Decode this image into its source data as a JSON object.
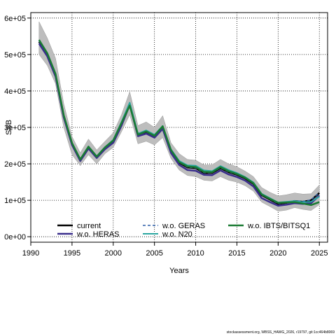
{
  "chart_data": {
    "type": "line",
    "title": "",
    "xlabel": "Years",
    "ylabel": "SSB",
    "xlim": [
      1990,
      2026
    ],
    "ylim": [
      -15000,
      615000
    ],
    "x_ticks": [
      1990,
      1995,
      2000,
      2005,
      2010,
      2015,
      2020,
      2025
    ],
    "x_tick_labels": [
      "1990",
      "1995",
      "2000",
      "2005",
      "2010",
      "2015",
      "2020",
      "2025"
    ],
    "y_ticks": [
      0,
      100000,
      200000,
      300000,
      400000,
      500000,
      600000
    ],
    "y_tick_labels": [
      "0e+00",
      "1e+05",
      "2e+05",
      "3e+05",
      "4e+05",
      "5e+05",
      "6e+05"
    ],
    "grid": true,
    "legend_position": "bottom",
    "years": [
      1991,
      1992,
      1993,
      1994,
      1995,
      1996,
      1997,
      1998,
      1999,
      2000,
      2001,
      2002,
      2003,
      2004,
      2005,
      2006,
      2007,
      2008,
      2009,
      2010,
      2011,
      2012,
      2013,
      2014,
      2015,
      2016,
      2017,
      2018,
      2019,
      2020,
      2021,
      2022,
      2023,
      2024,
      2025
    ],
    "band": {
      "upper": [
        590000,
        545000,
        490000,
        365000,
        275000,
        230000,
        268000,
        238000,
        262000,
        285000,
        335000,
        398000,
        305000,
        315000,
        300000,
        332000,
        258000,
        228000,
        212000,
        210000,
        197000,
        197000,
        212000,
        200000,
        192000,
        180000,
        165000,
        135000,
        122000,
        112000,
        115000,
        120000,
        117000,
        118000,
        142000
      ],
      "lower": [
        500000,
        470000,
        420000,
        300000,
        225000,
        195000,
        225000,
        200000,
        228000,
        245000,
        288000,
        335000,
        255000,
        262000,
        252000,
        272000,
        215000,
        183000,
        168000,
        165000,
        155000,
        153000,
        165000,
        155000,
        150000,
        140000,
        125000,
        95000,
        83000,
        70000,
        73000,
        80000,
        75000,
        72000,
        88000
      ]
    },
    "series": [
      {
        "name": "current",
        "color": "#000000",
        "dash": "solid",
        "width": 2.5,
        "values": [
          535000,
          500000,
          445000,
          330000,
          255000,
          210000,
          245000,
          218000,
          243000,
          262000,
          310000,
          365000,
          278000,
          287000,
          275000,
          300000,
          235000,
          203000,
          190000,
          188000,
          175000,
          175000,
          188000,
          177000,
          170000,
          160000,
          145000,
          114000,
          102000,
          90000,
          93000,
          98000,
          96000,
          100000,
          120000
        ]
      },
      {
        "name": "w.o. HERAS",
        "color": "#3a2e8c",
        "dash": "solid",
        "width": 2.5,
        "values": [
          530000,
          495000,
          440000,
          327000,
          252000,
          208000,
          242000,
          216000,
          240000,
          258000,
          305000,
          362000,
          276000,
          283000,
          272000,
          296000,
          230000,
          197000,
          183000,
          181000,
          170000,
          169000,
          182000,
          171000,
          164000,
          154000,
          138000,
          106000,
          95000,
          85000,
          88000,
          92000,
          90000,
          92000,
          113000
        ]
      },
      {
        "name": "w.o. GERAS",
        "color": "#2b5fa8",
        "dash": "dashed",
        "width": 1.5,
        "values": [
          537000,
          501000,
          446000,
          331000,
          256000,
          211000,
          246000,
          219000,
          244000,
          263000,
          311000,
          366000,
          279000,
          288000,
          276000,
          301000,
          236000,
          204000,
          191000,
          189000,
          176000,
          176000,
          189000,
          178000,
          171000,
          161000,
          146000,
          115000,
          103000,
          91000,
          94000,
          99000,
          97000,
          101000,
          121000
        ]
      },
      {
        "name": "w.o. N20",
        "color": "#2aa6a0",
        "dash": "solid",
        "width": 2.0,
        "values": [
          540000,
          504000,
          448000,
          334000,
          258000,
          213000,
          248000,
          221000,
          246000,
          266000,
          315000,
          368000,
          283000,
          292000,
          280000,
          304000,
          240000,
          208000,
          196000,
          195000,
          182000,
          180000,
          194000,
          183000,
          175000,
          164000,
          149000,
          118000,
          106000,
          94000,
          96000,
          98000,
          95000,
          96000,
          110000
        ]
      },
      {
        "name": "w.o. IBTS/BITSQ1",
        "color": "#1a7a32",
        "dash": "solid",
        "width": 2.5,
        "values": [
          540000,
          503000,
          447000,
          333000,
          257000,
          212000,
          247000,
          220000,
          245000,
          264000,
          312000,
          360000,
          280000,
          289000,
          277000,
          303000,
          238000,
          205000,
          193000,
          191000,
          178000,
          177000,
          191000,
          180000,
          172000,
          162000,
          147000,
          116000,
          104000,
          93000,
          94000,
          95000,
          91000,
          87000,
          95000
        ]
      }
    ]
  },
  "footnote": "stockassessment.org, WBSS_HAWG_2026, r19797, git:1cc464b8069"
}
